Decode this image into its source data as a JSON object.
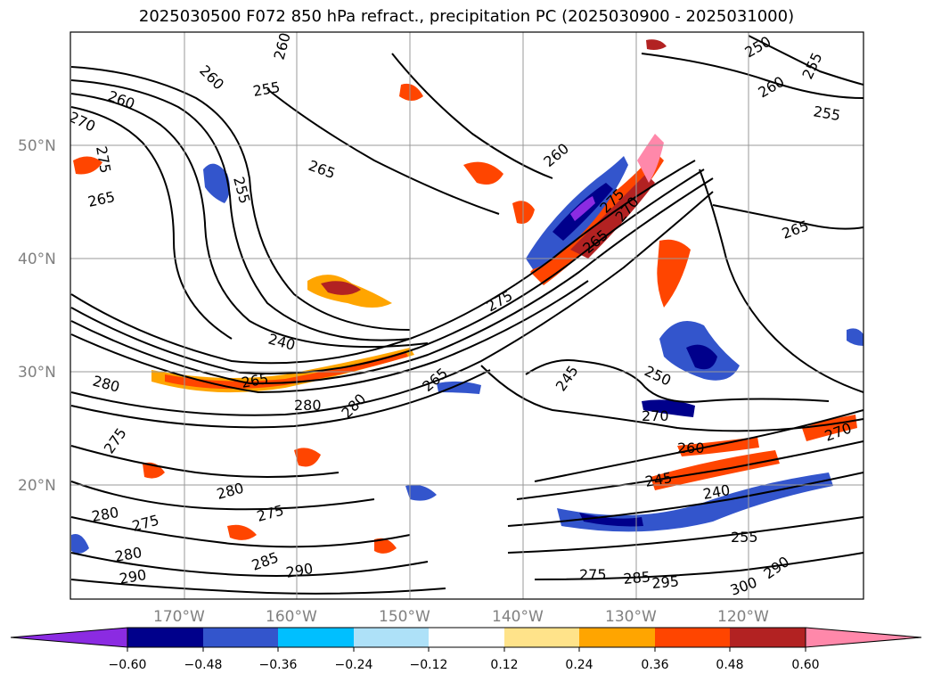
{
  "title": "2025030500 F072 850 hPa refract., precipitation PC (2025030900 - 2025031000)",
  "lat_labels": [
    "50°N",
    "40°N",
    "30°N",
    "20°N"
  ],
  "lon_labels": [
    "170°W",
    "160°W",
    "150°W",
    "140°W",
    "130°W",
    "120°W"
  ],
  "colorbar": {
    "colors": [
      "#8b2be2",
      "#00008b",
      "#3355cc",
      "#00bfff",
      "#aee1f8",
      "#ffffff",
      "#ffe38a",
      "#ffa500",
      "#ff4500",
      "#b22222",
      "#ff88aa"
    ],
    "ticks": [
      "−0.60",
      "−0.48",
      "−0.36",
      "−0.24",
      "−0.12",
      "0.12",
      "0.24",
      "0.36",
      "0.48",
      "0.60"
    ]
  },
  "contour_labels": [
    "260",
    "265",
    "270",
    "275",
    "255",
    "260",
    "265",
    "255",
    "265",
    "260",
    "275",
    "270",
    "265",
    "275",
    "255",
    "260",
    "240",
    "245",
    "250",
    "270",
    "280",
    "280",
    "280",
    "260",
    "245",
    "240",
    "255",
    "275",
    "280",
    "280",
    "275",
    "275",
    "280",
    "290",
    "285",
    "290",
    "275",
    "285",
    "295",
    "300",
    "290",
    "255",
    "265",
    "260",
    "250",
    "270",
    "265"
  ]
}
